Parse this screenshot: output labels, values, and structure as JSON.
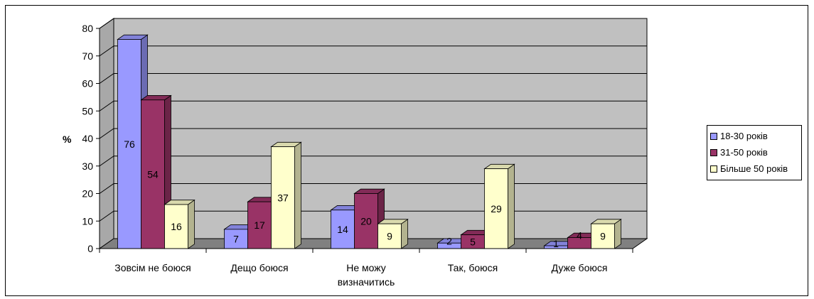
{
  "chart_data": {
    "type": "bar",
    "style": "3d-clustered",
    "categories": [
      "Зовсім не боюся",
      "Дещо боюся",
      "Не можу визначитись",
      "Так, боюся",
      "Дуже боюся"
    ],
    "category_lines": [
      [
        "Зовсім не боюся"
      ],
      [
        "Дещо боюся"
      ],
      [
        "Не можу",
        "визначитись"
      ],
      [
        "Так, боюся"
      ],
      [
        "Дуже боюся"
      ]
    ],
    "series": [
      {
        "name": "18-30 років",
        "values": [
          76,
          7,
          14,
          2,
          1
        ],
        "color": "#9999ff"
      },
      {
        "name": "31-50 років",
        "values": [
          54,
          17,
          20,
          5,
          4
        ],
        "color": "#993366"
      },
      {
        "name": "Більше 50 років",
        "values": [
          16,
          37,
          9,
          29,
          9
        ],
        "color": "#ffffcc"
      }
    ],
    "ylabel": "%",
    "ylim": [
      0,
      80
    ],
    "yticks": [
      0,
      10,
      20,
      30,
      40,
      50,
      60,
      70,
      80
    ],
    "grid": true,
    "data_labels": true,
    "legend_position": "right",
    "wall_color": "#c0c0c0",
    "floor_color": "#808080"
  }
}
